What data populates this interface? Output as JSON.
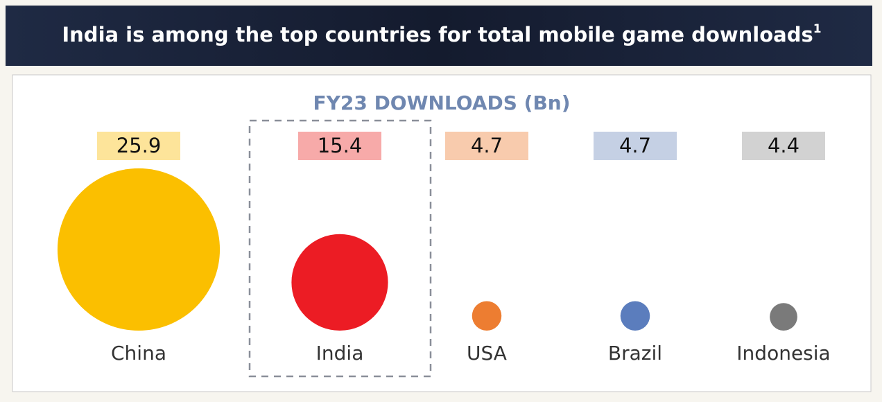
{
  "chart_data": {
    "type": "bubble",
    "title": "India is among the top countries for total mobile game downloads",
    "title_note": "1",
    "subtitle": "FY23 DOWNLOADS (Bn)",
    "categories": [
      "China",
      "India",
      "USA",
      "Brazil",
      "Indonesia"
    ],
    "values": [
      25.9,
      15.4,
      4.7,
      4.7,
      4.4
    ],
    "colors": [
      "#fbbf00",
      "#ec1c24",
      "#ed7d31",
      "#5b7dbd",
      "#7a7a7a"
    ],
    "label_colors": [
      "#fde49a",
      "#f7aaa9",
      "#f8cbad",
      "#c5d0e4",
      "#d2d2d2"
    ],
    "highlight": "India"
  }
}
